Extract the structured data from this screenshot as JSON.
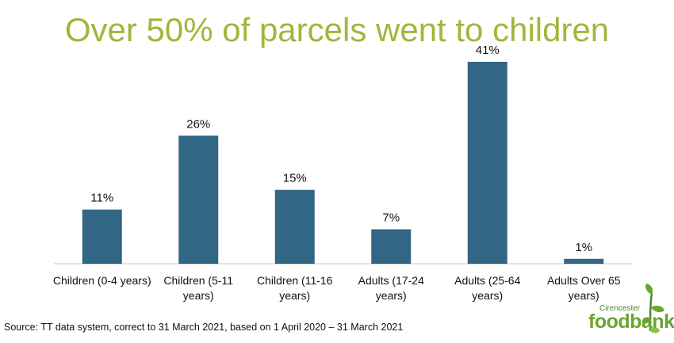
{
  "colors": {
    "title": "#a2b63a",
    "bar": "#316785",
    "text": "#111111",
    "axis": "#c8c8c8"
  },
  "chart_data": {
    "type": "bar",
    "title": "Over 50% of parcels went to children",
    "categories": [
      [
        "Children (0-4 years)"
      ],
      [
        "Children (5-11",
        "years)"
      ],
      [
        "Children (11-16",
        "years)"
      ],
      [
        "Adults (17-24",
        "years)"
      ],
      [
        "Adults (25-64",
        "years)"
      ],
      [
        "Adults Over 65",
        "years)"
      ]
    ],
    "values": [
      11,
      26,
      15,
      7,
      41,
      1
    ],
    "value_labels": [
      "11%",
      "26%",
      "15%",
      "7%",
      "41%",
      "1%"
    ],
    "ylim": [
      0,
      41
    ],
    "grid": false,
    "legend": "none"
  },
  "source": "Source: TT data system, correct to 31 March 2021, based on 1 April 2020 – 31 March 2021",
  "logo": {
    "small_text": "Cirencester",
    "main_text": "foodbank"
  }
}
